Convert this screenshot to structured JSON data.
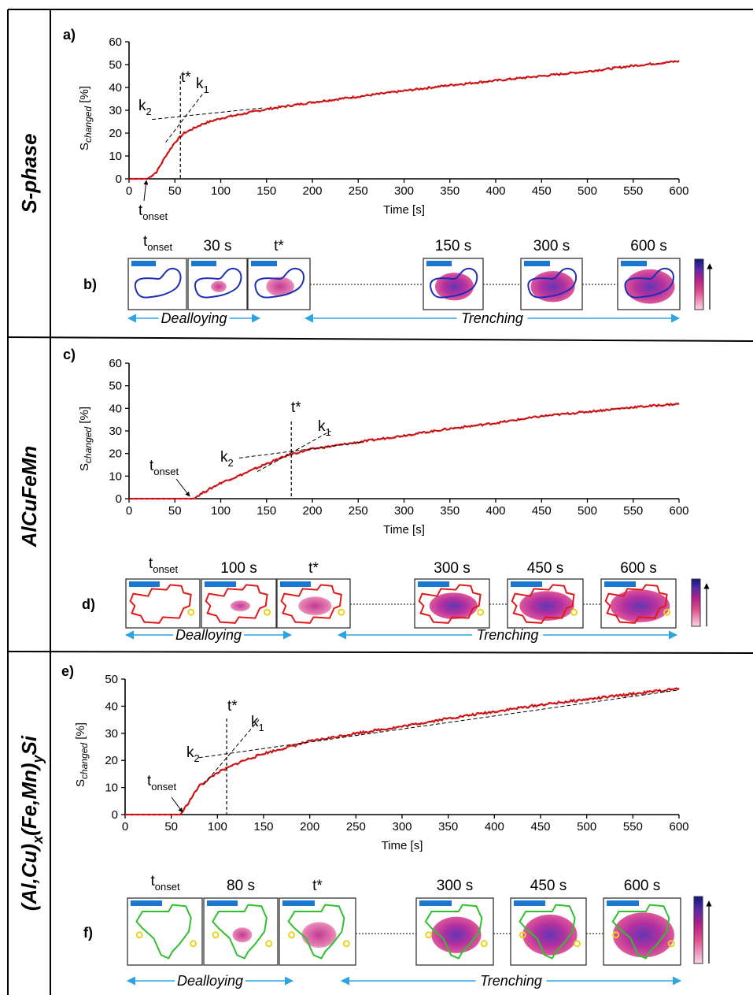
{
  "figure": {
    "rows": [
      {
        "material": "S-phase",
        "chart_panel_label": "a)",
        "image_panel_label": "b)",
        "ylabel": "S",
        "ylabel_sub": "changed",
        "ylabel_unit": "[%]",
        "xlabel": "Time [s]",
        "xlim": [
          0,
          600
        ],
        "ylim": [
          0,
          60
        ],
        "x_ticks": [
          "0",
          "50",
          "100",
          "150",
          "200",
          "250",
          "300",
          "350",
          "400",
          "450",
          "500",
          "550",
          "600"
        ],
        "y_ticks": [
          "0",
          "10",
          "20",
          "30",
          "40",
          "50",
          "60"
        ],
        "t_star_label": "t*",
        "k1_label": "k",
        "k1_sub": "1",
        "k2_label": "k",
        "k2_sub": "2",
        "tonset_label": "t",
        "tonset_sub": "onset",
        "snapshot_labels": [
          "t_onset",
          "30 s",
          "t*",
          "150 s",
          "300 s",
          "600 s"
        ],
        "phase_left": "Dealloying",
        "phase_right": "Trenching",
        "outline_color": "#1f2fb4"
      },
      {
        "material": "AlCuFeMn",
        "chart_panel_label": "c)",
        "image_panel_label": "d)",
        "ylabel": "S",
        "ylabel_sub": "changed",
        "ylabel_unit": "[%]",
        "xlabel": "Time [s]",
        "xlim": [
          0,
          600
        ],
        "ylim": [
          0,
          60
        ],
        "x_ticks": [
          "0",
          "50",
          "100",
          "150",
          "200",
          "250",
          "300",
          "350",
          "400",
          "450",
          "500",
          "550",
          "600"
        ],
        "y_ticks": [
          "0",
          "10",
          "20",
          "30",
          "40",
          "50",
          "60"
        ],
        "t_star_label": "t*",
        "k1_label": "k",
        "k1_sub": "1",
        "k2_label": "k",
        "k2_sub": "2",
        "tonset_label": "t",
        "tonset_sub": "onset",
        "snapshot_labels": [
          "t_onset",
          "100 s",
          "t*",
          "300 s",
          "450 s",
          "600 s"
        ],
        "phase_left": "Dealloying",
        "phase_right": "Trenching",
        "outline_color": "#e01a1a"
      },
      {
        "material": "(Al,Cu)x(Fe,Mn)ySi",
        "material_parts": [
          "(Al,Cu)",
          "x",
          "(Fe,Mn)",
          "y",
          "Si"
        ],
        "chart_panel_label": "e)",
        "image_panel_label": "f)",
        "ylabel": "S",
        "ylabel_sub": "changed",
        "ylabel_unit": "[%]",
        "xlabel": "Time [s]",
        "xlim": [
          0,
          600
        ],
        "ylim": [
          0,
          50
        ],
        "x_ticks": [
          "0",
          "50",
          "100",
          "150",
          "200",
          "250",
          "300",
          "350",
          "400",
          "450",
          "500",
          "550",
          "600"
        ],
        "y_ticks": [
          "0",
          "10",
          "20",
          "30",
          "40",
          "50"
        ],
        "t_star_label": "t*",
        "k1_label": "k",
        "k1_sub": "1",
        "k2_label": "k",
        "k2_sub": "2",
        "tonset_label": "t",
        "tonset_sub": "onset",
        "snapshot_labels": [
          "t_onset",
          "80 s",
          "t*",
          "300 s",
          "450 s",
          "600 s"
        ],
        "phase_left": "Dealloying",
        "phase_right": "Trenching",
        "outline_color": "#2fbf2f"
      }
    ]
  },
  "chart_data": [
    {
      "type": "line",
      "xlabel": "Time [s]",
      "ylabel": "S_changed [%]",
      "xlim": [
        0,
        600
      ],
      "ylim": [
        0,
        60
      ],
      "series": [
        {
          "name": "",
          "x": [
            0,
            20,
            30,
            40,
            50,
            60,
            80,
            100,
            125,
            150,
            200,
            250,
            300,
            350,
            400,
            450,
            500,
            550,
            600
          ],
          "values": [
            0,
            0,
            3,
            10,
            16,
            20,
            24,
            26.5,
            28.5,
            30.5,
            33.5,
            36,
            38.5,
            41,
            43,
            45,
            47,
            49.5,
            51.5
          ]
        }
      ],
      "t_onset": 22,
      "t_star": 56,
      "tangent_k1": {
        "x": [
          40,
          80
        ],
        "y": [
          16,
          37
        ]
      },
      "tangent_k2": {
        "x": [
          25,
          145
        ],
        "y": [
          26,
          31
        ]
      }
    },
    {
      "type": "line",
      "xlabel": "Time [s]",
      "ylabel": "S_changed [%]",
      "xlim": [
        0,
        600
      ],
      "ylim": [
        0,
        60
      ],
      "series": [
        {
          "name": "",
          "x": [
            0,
            50,
            70,
            80,
            100,
            125,
            150,
            175,
            200,
            250,
            300,
            350,
            400,
            450,
            500,
            550,
            600
          ],
          "values": [
            0,
            0,
            0,
            2.5,
            7,
            11,
            15.5,
            19.5,
            22,
            25,
            28,
            31,
            33.5,
            36.5,
            38.5,
            40.5,
            42
          ]
        }
      ],
      "t_onset": 70,
      "t_star": 177,
      "tangent_k1": {
        "x": [
          140,
          220
        ],
        "y": [
          12,
          30
        ]
      },
      "tangent_k2": {
        "x": [
          120,
          255
        ],
        "y": [
          18,
          25
        ]
      }
    },
    {
      "type": "line",
      "xlabel": "Time [s]",
      "ylabel": "S_changed [%]",
      "xlim": [
        0,
        600
      ],
      "ylim": [
        0,
        50
      ],
      "series": [
        {
          "name": "",
          "x": [
            0,
            50,
            60,
            65,
            80,
            100,
            110,
            125,
            150,
            200,
            250,
            300,
            350,
            400,
            450,
            500,
            550,
            600
          ],
          "values": [
            0,
            0,
            0,
            2.5,
            10.5,
            15.5,
            17,
            19.5,
            22.5,
            27,
            30,
            32.5,
            35.5,
            38,
            40.5,
            42.5,
            44.5,
            46.5
          ]
        }
      ],
      "t_onset": 62,
      "t_star": 110,
      "tangent_k1": {
        "x": [
          85,
          145
        ],
        "y": [
          11,
          35
        ]
      },
      "tangent_k2": {
        "x": [
          80,
          600
        ],
        "y": [
          21,
          46
        ]
      }
    }
  ]
}
